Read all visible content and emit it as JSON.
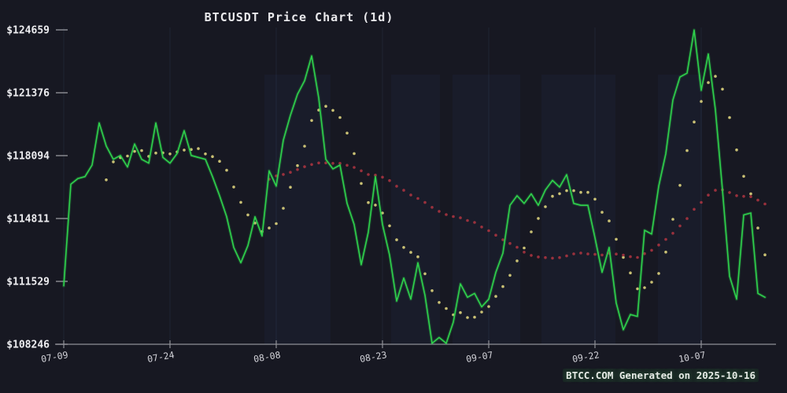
{
  "chart_data": {
    "type": "line",
    "title": "BTCUSDT Price Chart (1d)",
    "footer": "BTCC.COM Generated on 2025-10-16",
    "interval": "1d",
    "start_label": "07-09",
    "end_label": "10-16",
    "x_axis": {
      "tick_labels": [
        "07-09",
        "07-24",
        "08-08",
        "08-23",
        "09-07",
        "09-22",
        "10-07"
      ],
      "tick_day_indices": [
        0,
        15,
        30,
        45,
        60,
        75,
        90
      ]
    },
    "y_axis": {
      "tick_labels": [
        "$124659",
        "$121376",
        "$118094",
        "$114811",
        "$111529",
        "$108246"
      ],
      "tick_values": [
        124659,
        121376,
        118094,
        114811,
        111529,
        108246
      ]
    },
    "ylim": [
      108246,
      124659
    ],
    "grid": "faint-vertical-only",
    "legend": "none",
    "series": [
      {
        "name": "Price",
        "style": "line",
        "color": "#2fd24c",
        "values": [
          111300,
          116600,
          116900,
          117000,
          117600,
          119800,
          118600,
          117900,
          118100,
          117500,
          118700,
          117900,
          117700,
          119800,
          118000,
          117700,
          118200,
          119400,
          118100,
          118000,
          117900,
          117000,
          116000,
          114900,
          113300,
          112500,
          113400,
          114900,
          113900,
          117300,
          116500,
          118900,
          120200,
          121300,
          122000,
          123300,
          121100,
          117900,
          117400,
          117600,
          115600,
          114500,
          112400,
          114100,
          117000,
          114500,
          112900,
          110500,
          111700,
          110600,
          112500,
          110800,
          108300,
          108600,
          108300,
          109400,
          111400,
          110700,
          110900,
          110200,
          110600,
          112000,
          113000,
          115500,
          116000,
          115600,
          116100,
          115500,
          116300,
          116800,
          116450,
          117100,
          115600,
          115500,
          115500,
          113800,
          112000,
          113300,
          110400,
          109000,
          109800,
          109700,
          114200,
          114000,
          116500,
          118200,
          121000,
          122200,
          122400,
          124650,
          121500,
          123400,
          120500,
          116300,
          111800,
          110600,
          115000,
          115100,
          110900,
          110700
        ]
      },
      {
        "name": "MA7",
        "style": "dots",
        "color": "#d9cf7c",
        "derived": "moving_average",
        "window": 7
      },
      {
        "name": "MA30",
        "style": "dots",
        "color": "#a5333f",
        "derived": "moving_average",
        "window": 30
      }
    ],
    "colors": {
      "background": "#171822",
      "axis": "#8f9097",
      "y_tick_label": "#ededf0",
      "x_tick_label": "#d2d2d8",
      "gridline": "rgba(110,135,200,0.10)",
      "band": "rgba(60,85,150,0.07)"
    }
  }
}
